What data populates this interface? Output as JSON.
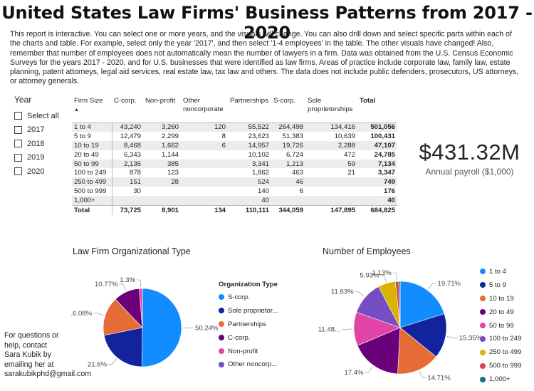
{
  "title": "United States Law Firms' Business Patterns from 2017 - 2020",
  "intro": "This report is interactive. You can select one or more years, and the visuals will change. You can also drill down and select specific parts within each of the charts and table. For example, select only the year '2017', and then select '1-4 employees' in the table. The other visuals have changed! Also, remember that number of employees does not automatically mean the number of lawyers in a firm. Data was obtained from the U.S. Census Economic Surveys for the years 2017 - 2020, and for U.S. businesses that were identified as law firms. Areas of practice include corporate law, family law, estate planning, patent attorneys, legal aid services, real estate law, tax law and others. The data does not include public defenders, prosecutors, US attorneys, or attorney generals.",
  "slicer": {
    "title": "Year",
    "options": [
      "Select all",
      "2017",
      "2018",
      "2019",
      "2020"
    ]
  },
  "table": {
    "headers": [
      "Firm Size",
      "C-corp.",
      "Non-profit",
      "Other noncorporate",
      "Partnerships",
      "S-corp.",
      "Sole proprietorships",
      "Total"
    ],
    "sort_indicator": "▲",
    "rows": [
      [
        "1 to 4",
        "43,240",
        "3,260",
        "120",
        "55,522",
        "264,498",
        "134,416",
        "501,056"
      ],
      [
        "5 to 9",
        "12,479",
        "2,299",
        "8",
        "23,623",
        "51,383",
        "10,639",
        "100,431"
      ],
      [
        "10 to 19",
        "8,468",
        "1,662",
        "6",
        "14,957",
        "19,726",
        "2,288",
        "47,107"
      ],
      [
        "20 to 49",
        "6,343",
        "1,144",
        "",
        "10,102",
        "6,724",
        "472",
        "24,785"
      ],
      [
        "50 to 99",
        "2,136",
        "385",
        "",
        "3,341",
        "1,213",
        "59",
        "7,134"
      ],
      [
        "100 to 249",
        "878",
        "123",
        "",
        "1,862",
        "463",
        "21",
        "3,347"
      ],
      [
        "250 to 499",
        "151",
        "28",
        "",
        "524",
        "46",
        "",
        "749"
      ],
      [
        "500 to 999",
        "30",
        "",
        "",
        "140",
        "6",
        "",
        "176"
      ],
      [
        "1,000+",
        "",
        "",
        "",
        "40",
        "",
        "",
        "40"
      ]
    ],
    "total_row": [
      "Total",
      "73,725",
      "8,901",
      "134",
      "110,111",
      "344,059",
      "147,895",
      "684,825"
    ]
  },
  "kpi": {
    "value": "$431.32M",
    "label": "Annual payroll ($1,000)"
  },
  "org_chart": {
    "title": "Law Firm Organizational Type",
    "legend_title": "Organization Type",
    "legend_items": [
      "S-corp.",
      "Sole proprietor...",
      "Partnerships",
      "C-corp.",
      "Non-profit",
      "Other noncorp..."
    ]
  },
  "emp_chart": {
    "title": "Number of Employees",
    "legend_items": [
      "1 to 4",
      "5 to 9",
      "10 to 19",
      "20 to 49",
      "50 to 99",
      "100 to 249",
      "250 to 499",
      "500 to 999",
      "1,000+"
    ]
  },
  "contact": "For questions or help, contact Sara Kubik by emailing her at sarakubikphd@gmail.com",
  "chart_data": [
    {
      "type": "pie",
      "title": "Law Firm Organizational Type",
      "categories": [
        "S-corp.",
        "Sole proprietorships",
        "Partnerships",
        "C-corp.",
        "Non-profit",
        "Other noncorporate"
      ],
      "values": [
        50.24,
        21.6,
        16.08,
        10.77,
        1.3,
        0.02
      ],
      "labels": [
        "50.24%",
        "21.6%",
        "16.08%",
        "10.77%",
        "1.3%",
        ""
      ],
      "colors": [
        "#118DFF",
        "#12239E",
        "#E66C37",
        "#6B007B",
        "#E044A7",
        "#744EC2"
      ],
      "legend": "right"
    },
    {
      "type": "pie",
      "title": "Number of Employees",
      "categories": [
        "1 to 4",
        "5 to 9",
        "10 to 19",
        "20 to 49",
        "50 to 99",
        "100 to 249",
        "250 to 499",
        "500 to 999",
        "1,000+"
      ],
      "values": [
        19.71,
        15.35,
        14.71,
        17.4,
        11.48,
        11.63,
        5.93,
        1.13,
        0.5
      ],
      "labels": [
        "19.71%",
        "15.35%",
        "14.71%",
        "17.4%",
        "11.48...",
        "11.63%",
        "5.93%",
        "1.13%",
        ""
      ],
      "colors": [
        "#118DFF",
        "#12239E",
        "#E66C37",
        "#6B007B",
        "#E044A7",
        "#744EC2",
        "#D9B300",
        "#D64550",
        "#197278"
      ],
      "legend": "right"
    }
  ]
}
